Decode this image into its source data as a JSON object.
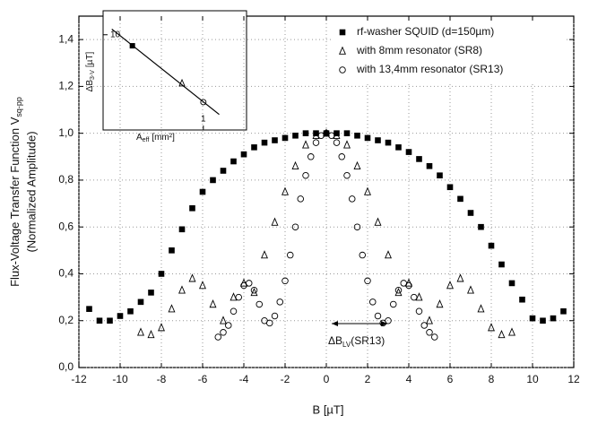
{
  "chart_data": [
    {
      "type": "scatter",
      "xlabel": "B [µT]",
      "ylabel": "Flux-Voltage Transfer Function V",
      "ylabel_sub": "sq-pp",
      "ylabel2": "(Normalized Amplitude)",
      "xlim": [
        -12,
        12
      ],
      "ylim": [
        0,
        1.5
      ],
      "xticks": [
        -12,
        -10,
        -8,
        -6,
        -4,
        -2,
        0,
        2,
        4,
        6,
        8,
        10,
        12
      ],
      "yticks": [
        {
          "value": 0,
          "label": "0,0"
        },
        {
          "value": 0.2,
          "label": "0,2"
        },
        {
          "value": 0.4,
          "label": "0,4"
        },
        {
          "value": 0.6,
          "label": "0,6"
        },
        {
          "value": 0.8,
          "label": "0,8"
        },
        {
          "value": 1.0,
          "label": "1,0"
        },
        {
          "value": 1.2,
          "label": "1,2"
        },
        {
          "value": 1.4,
          "label": "1,4"
        }
      ],
      "grid": true,
      "legend": "upper right",
      "annotation": {
        "text": "ΔB",
        "sub": "LV",
        "rest": "(SR13)"
      },
      "series": [
        {
          "name": "rf-washer SQUID (d=150µm)",
          "color": "#000000",
          "marker": "square",
          "x": [
            -11.5,
            -11,
            -10.5,
            -10,
            -9.5,
            -9,
            -8.5,
            -8,
            -7.5,
            -7,
            -6.5,
            -6,
            -5.5,
            -5,
            -4.5,
            -4,
            -3.5,
            -3,
            -2.5,
            -2,
            -1.5,
            -1,
            -0.5,
            0,
            0.5,
            1,
            1.5,
            2,
            2.5,
            3,
            3.5,
            4,
            4.5,
            5,
            5.5,
            6,
            6.5,
            7,
            7.5,
            8,
            8.5,
            9,
            9.5,
            10,
            10.5,
            11,
            11.5
          ],
          "values": [
            0.25,
            0.2,
            0.2,
            0.22,
            0.24,
            0.28,
            0.32,
            0.4,
            0.5,
            0.59,
            0.68,
            0.75,
            0.8,
            0.84,
            0.88,
            0.91,
            0.94,
            0.96,
            0.97,
            0.98,
            0.99,
            1.0,
            1.0,
            1.0,
            1.0,
            1.0,
            0.99,
            0.98,
            0.97,
            0.96,
            0.94,
            0.92,
            0.89,
            0.86,
            0.82,
            0.77,
            0.72,
            0.66,
            0.6,
            0.52,
            0.44,
            0.36,
            0.29,
            0.21,
            0.2,
            0.21,
            0.24
          ]
        },
        {
          "name": "with 8mm resonator (SR8)",
          "color": "#000000",
          "marker": "triangle",
          "x": [
            -9,
            -8.5,
            -8,
            -7.5,
            -7,
            -6.5,
            -6,
            -5.5,
            -5,
            -4.5,
            -4,
            -3.5,
            -3,
            -2.5,
            -2,
            -1.5,
            -1,
            -0.5,
            0,
            0.5,
            1,
            1.5,
            2,
            2.5,
            3,
            3.5,
            4,
            4.5,
            5,
            5.5,
            6,
            6.5,
            7,
            7.5,
            8,
            8.5,
            9
          ],
          "values": [
            0.15,
            0.14,
            0.17,
            0.25,
            0.33,
            0.38,
            0.35,
            0.27,
            0.2,
            0.3,
            0.36,
            0.32,
            0.48,
            0.62,
            0.75,
            0.86,
            0.95,
            0.99,
            1.0,
            0.99,
            0.95,
            0.86,
            0.75,
            0.62,
            0.48,
            0.32,
            0.36,
            0.3,
            0.2,
            0.27,
            0.35,
            0.38,
            0.33,
            0.25,
            0.17,
            0.14,
            0.15
          ]
        },
        {
          "name": "with 13,4mm resonator (SR13)",
          "color": "#000000",
          "marker": "circle",
          "x": [
            -5.25,
            -5,
            -4.75,
            -4.5,
            -4.25,
            -4,
            -3.75,
            -3.5,
            -3.25,
            -3,
            -2.75,
            -2.5,
            -2.25,
            -2,
            -1.75,
            -1.5,
            -1.25,
            -1,
            -0.75,
            -0.5,
            -0.25,
            0,
            0.25,
            0.5,
            0.75,
            1,
            1.25,
            1.5,
            1.75,
            2,
            2.25,
            2.5,
            2.75,
            3,
            3.25,
            3.5,
            3.75,
            4,
            4.25,
            4.5,
            4.75,
            5,
            5.25
          ],
          "values": [
            0.13,
            0.15,
            0.18,
            0.24,
            0.3,
            0.35,
            0.36,
            0.33,
            0.27,
            0.2,
            0.19,
            0.22,
            0.28,
            0.37,
            0.48,
            0.6,
            0.72,
            0.82,
            0.9,
            0.96,
            0.99,
            1.0,
            0.99,
            0.96,
            0.9,
            0.82,
            0.72,
            0.6,
            0.48,
            0.37,
            0.28,
            0.22,
            0.19,
            0.2,
            0.27,
            0.33,
            0.36,
            0.35,
            0.3,
            0.24,
            0.18,
            0.15,
            0.13
          ]
        }
      ]
    },
    {
      "type": "scatter",
      "xlog": true,
      "ylog": true,
      "xlabel": "A",
      "xlabel_sub": "eff",
      "xlabel_rest": "[mm²]",
      "ylabel": "ΔB",
      "ylabel_sub": "3-V",
      "ylabel_rest": "[µT]",
      "xlim": [
        0.2,
        2
      ],
      "ylim": [
        2,
        15
      ],
      "xticks": [
        1
      ],
      "yticks": [
        10
      ],
      "series": [
        {
          "color": "#000000",
          "marker": "line",
          "x": [
            0.23,
            1.29
          ],
          "values": [
            11,
            2.6
          ]
        },
        {
          "color": "#000000",
          "marker": "square",
          "x": [
            0.32
          ],
          "values": [
            8.3
          ]
        },
        {
          "color": "#000000",
          "marker": "triangle",
          "x": [
            0.71
          ],
          "values": [
            4.4
          ]
        },
        {
          "color": "#000000",
          "marker": "circle",
          "x": [
            1.0
          ],
          "values": [
            3.2
          ]
        }
      ]
    }
  ]
}
